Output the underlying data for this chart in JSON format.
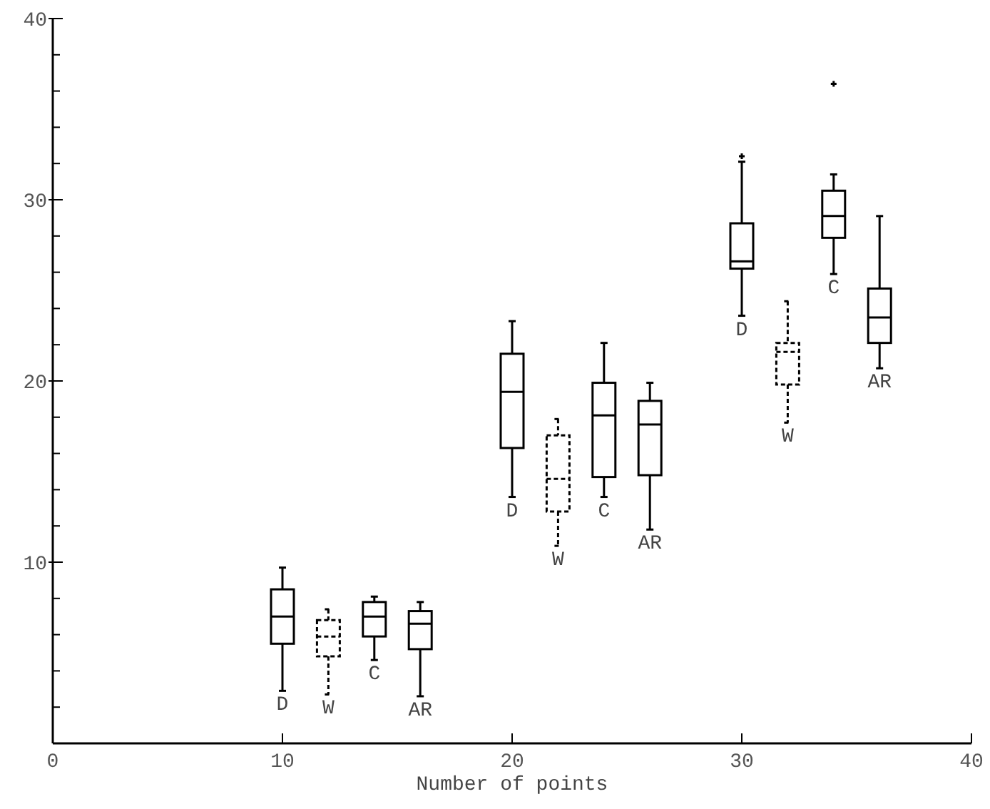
{
  "chart_data": {
    "type": "box",
    "xlabel": "Number of points",
    "xlim": [
      0,
      40
    ],
    "xticks": [
      0,
      10,
      20,
      30,
      40
    ],
    "ylim": [
      0,
      40
    ],
    "yticks": [
      {
        "value": 2,
        "label": null
      },
      {
        "value": 4,
        "label": null
      },
      {
        "value": 6,
        "label": null
      },
      {
        "value": 8,
        "label": null
      },
      10,
      {
        "value": 12,
        "label": null
      },
      {
        "value": 14,
        "label": null
      },
      {
        "value": 16,
        "label": null
      },
      {
        "value": 18,
        "label": null
      },
      20,
      {
        "value": 22,
        "label": null
      },
      {
        "value": 24,
        "label": null
      },
      {
        "value": 26,
        "label": null
      },
      {
        "value": 28,
        "label": null
      },
      30,
      {
        "value": 32,
        "label": null
      },
      {
        "value": 34,
        "label": null
      },
      {
        "value": 36,
        "label": null
      },
      {
        "value": 38,
        "label": null
      },
      40
    ],
    "grid": false,
    "legend": false,
    "series": [
      {
        "name": "D",
        "color": "#000000",
        "line_style": "solid",
        "x": [
          10,
          20,
          30
        ],
        "boxes": [
          {
            "low": 2.9,
            "q1": 5.5,
            "median": 7.0,
            "q3": 8.5,
            "high": 9.7
          },
          {
            "low": 13.6,
            "q1": 16.3,
            "median": 19.4,
            "q3": 21.5,
            "high": 23.3
          },
          {
            "low": 23.6,
            "q1": 26.2,
            "median": 26.6,
            "q3": 28.7,
            "high": 32.1,
            "outliers": [
              32.4
            ]
          }
        ]
      },
      {
        "name": "W",
        "color": "#000000",
        "line_style": "dashed",
        "x": [
          12,
          22,
          32
        ],
        "boxes": [
          {
            "low": 2.7,
            "q1": 4.8,
            "median": 5.9,
            "q3": 6.8,
            "high": 7.4
          },
          {
            "low": 10.9,
            "q1": 12.8,
            "median": 14.6,
            "q3": 17.0,
            "high": 17.9
          },
          {
            "low": 17.7,
            "q1": 19.8,
            "median": 21.6,
            "q3": 22.1,
            "high": 24.4
          }
        ]
      },
      {
        "name": "C",
        "color": "#000000",
        "line_style": "solid",
        "x": [
          14,
          24,
          34
        ],
        "boxes": [
          {
            "low": 4.6,
            "q1": 5.9,
            "median": 7.0,
            "q3": 7.8,
            "high": 8.1
          },
          {
            "low": 13.6,
            "q1": 14.7,
            "median": 18.1,
            "q3": 19.9,
            "high": 22.1
          },
          {
            "low": 25.9,
            "q1": 27.9,
            "median": 29.1,
            "q3": 30.5,
            "high": 31.4,
            "outliers": [
              36.4
            ]
          }
        ]
      },
      {
        "name": "AR",
        "color": "#000000",
        "line_style": "solid",
        "x": [
          16,
          26,
          36
        ],
        "boxes": [
          {
            "low": 2.6,
            "q1": 5.2,
            "median": 6.6,
            "q3": 7.3,
            "high": 7.8
          },
          {
            "low": 11.8,
            "q1": 14.8,
            "median": 17.6,
            "q3": 18.9,
            "high": 19.9
          },
          {
            "low": 20.7,
            "q1": 22.1,
            "median": 23.5,
            "q3": 25.1,
            "high": 29.1
          }
        ]
      }
    ]
  }
}
